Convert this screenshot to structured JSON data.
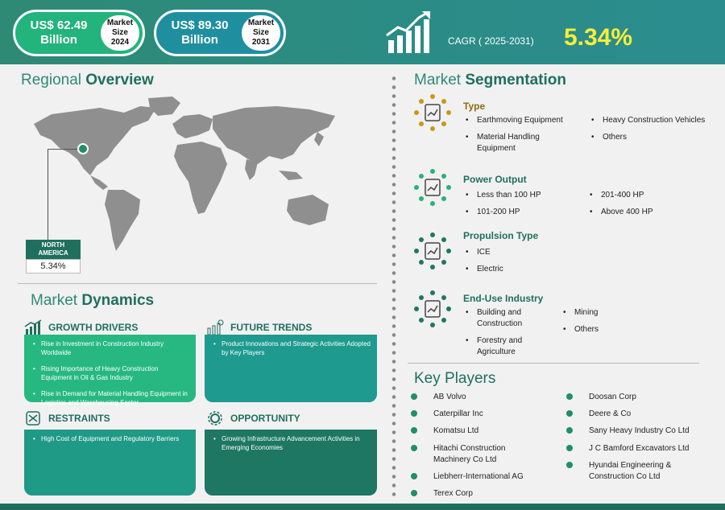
{
  "header": {
    "size_2024": {
      "amount": "US$ 62.49\nBillion",
      "amount_line1": "US$ 62.49",
      "amount_line2": "Billion",
      "badge_line1": "Market",
      "badge_line2": "Size",
      "badge_line3": "2024"
    },
    "size_2031": {
      "amount_line1": "US$ 89.30",
      "amount_line2": "Billion",
      "badge_line1": "Market",
      "badge_line2": "Size",
      "badge_line3": "2031"
    },
    "cagr_label": "CAGR ( 2025-2031)",
    "cagr_value": "5.34%",
    "growth_icon": "growth-bar-chart-icon"
  },
  "regional": {
    "title_plain": "Regional ",
    "title_bold": "Overview",
    "region_line1": "NORTH",
    "region_line2": "AMERICA",
    "region_value": "5.34%"
  },
  "dynamics": {
    "title_plain": "Market ",
    "title_bold": "Dynamics",
    "growth_drivers": {
      "label": "GROWTH DRIVERS",
      "items": [
        "Rise in Investment in Construction Industry Worldwide",
        "Rising Importance of Heavy Construction Equipment in Oil & Gas Industry",
        "Rise in Demand for Material Handling Equipment in Logistics and Warehousing Sector"
      ]
    },
    "future_trends": {
      "label": "FUTURE TRENDS",
      "items": [
        "Product Innovations and Strategic Activities Adopted by Key Players"
      ]
    },
    "restraints": {
      "label": "RESTRAINTS",
      "items": [
        "High Cost of Equipment and Regulatory Barriers"
      ]
    },
    "opportunity": {
      "label": "OPPORTUNITY",
      "items": [
        "Growing Infrastructure Advancement Activities in Emerging Economies"
      ]
    }
  },
  "segmentation": {
    "title_plain": "Market ",
    "title_bold": "Segmentation",
    "type": {
      "title": "Type",
      "items": [
        "Earthmoving Equipment",
        "Heavy Construction Vehicles",
        "Material Handling Equipment",
        "Others"
      ]
    },
    "power": {
      "title": "Power Output",
      "items": [
        "Less than 100 HP",
        "201-400 HP",
        "101-200 HP",
        "Above 400 HP"
      ]
    },
    "propulsion": {
      "title": "Propulsion Type",
      "items": [
        "ICE",
        "Electric"
      ]
    },
    "end_use": {
      "title": "End-Use Industry",
      "items": [
        "Building and Construction",
        "Mining",
        "Forestry and Agriculture",
        "Others"
      ]
    }
  },
  "key_players": {
    "title": "Key Players",
    "left": [
      "AB Volvo",
      "Caterpillar Inc",
      "Komatsu Ltd",
      "Hitachi Construction Machinery Co Ltd",
      "Liebherr-International AG",
      "Terex Corp"
    ],
    "right": [
      "Doosan Corp",
      "Deere & Co",
      "Sany Heavy Industry Co Ltd",
      "J C Bamford Excavators Ltd",
      "Hyundai Engineering & Construction Co Ltd"
    ]
  },
  "colors": {
    "header_green": "#2e8a74",
    "pill_green": "#23b37c",
    "pill_teal": "#1f8fa0",
    "cagr_yellow": "#f5ee3a",
    "dark_green": "#1f6f5e",
    "box_green": "#27b882",
    "box_teal_1": "#1e9a8f",
    "box_teal_2": "#1f9a86",
    "box_dark": "#1d7763",
    "type_gold": "#c79a12"
  }
}
